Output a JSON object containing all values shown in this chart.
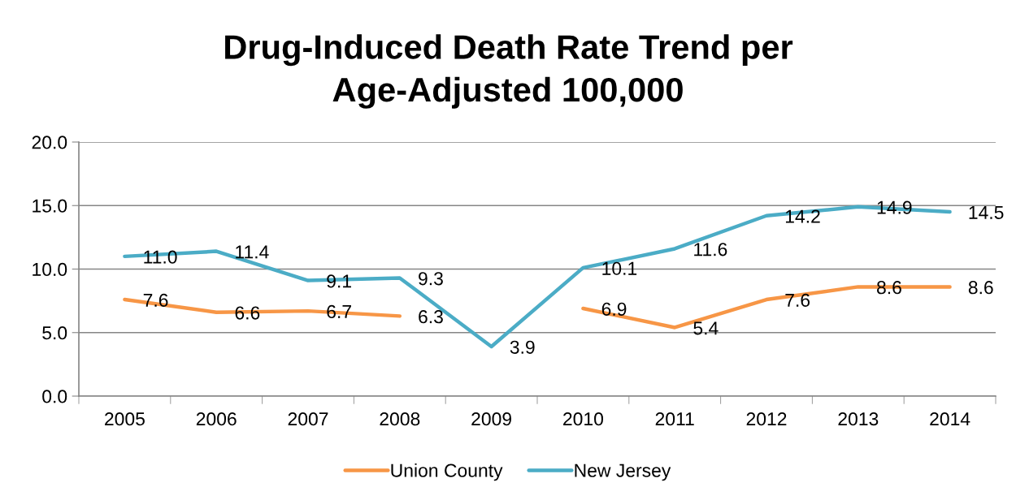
{
  "chart_data": {
    "type": "line",
    "title": "Drug-Induced Death Rate Trend per\nAge-Adjusted 100,000",
    "categories": [
      "2005",
      "2006",
      "2007",
      "2008",
      "2009",
      "2010",
      "2011",
      "2012",
      "2013",
      "2014"
    ],
    "series": [
      {
        "name": "Union County",
        "color": "#f79646",
        "values": [
          7.6,
          6.6,
          6.7,
          6.3,
          null,
          6.9,
          5.4,
          7.6,
          8.6,
          8.6
        ],
        "value_labels": [
          "7.6",
          "6.6",
          "6.7",
          "6.3",
          null,
          "6.9",
          "5.4",
          "7.6",
          "8.6",
          "8.6"
        ]
      },
      {
        "name": "New Jersey",
        "color": "#4bacc6",
        "values": [
          11.0,
          11.4,
          9.1,
          9.3,
          3.9,
          10.1,
          11.6,
          14.2,
          14.9,
          14.5
        ],
        "value_labels": [
          "11.0",
          "11.4",
          "9.1",
          "9.3",
          "3.9",
          "10.1",
          "11.6",
          "14.2",
          "14.9",
          "14.5"
        ]
      }
    ],
    "ylim": [
      0,
      20
    ],
    "yticks": [
      {
        "value": 0,
        "label": "0.0"
      },
      {
        "value": 5,
        "label": "5.0"
      },
      {
        "value": 10,
        "label": "10.0"
      },
      {
        "value": 15,
        "label": "15.0"
      },
      {
        "value": 20,
        "label": "20.0"
      }
    ],
    "grid": "y",
    "legend": "bottom",
    "line_style": "solid"
  }
}
